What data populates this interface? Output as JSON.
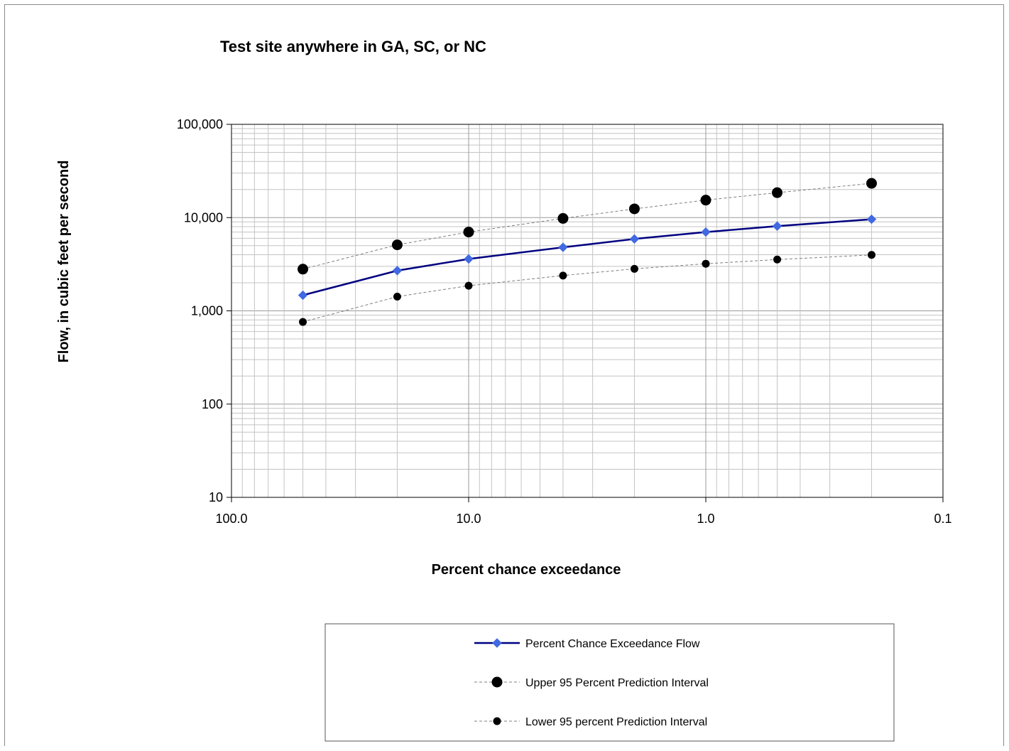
{
  "chart_data": {
    "type": "line",
    "title": "Test site anywhere in GA, SC, or NC",
    "xlabel": "Percent chance exceedance",
    "ylabel": "Flow, in cubic feet per second",
    "x_scale": "log",
    "x_reversed": true,
    "y_scale": "log",
    "xlim": [
      100,
      0.1
    ],
    "ylim": [
      10,
      100000
    ],
    "grid": true,
    "legend_position": "bottom",
    "x_tick_labels": [
      "100.0",
      "10.0",
      "1.0",
      "0.1"
    ],
    "y_tick_labels": [
      "10",
      "100",
      "1,000",
      "10,000",
      "100,000"
    ],
    "x": [
      50,
      20,
      10,
      4,
      2,
      1,
      0.5,
      0.2
    ],
    "series": [
      {
        "name": "Percent Chance Exceedance Flow",
        "color": "#000080",
        "marker_color": "#4169E1",
        "marker": "diamond",
        "line_style": "solid",
        "values": [
          1470,
          2700,
          3600,
          4800,
          5900,
          7000,
          8100,
          9600
        ]
      },
      {
        "name": "Upper 95 Percent Prediction Interval",
        "color": "#7f7f7f",
        "marker_color": "#000000",
        "marker": "circle-large",
        "line_style": "dashed",
        "values": [
          2800,
          5100,
          7000,
          9800,
          12400,
          15400,
          18500,
          23300
        ]
      },
      {
        "name": "Lower 95 percent Prediction Interval",
        "color": "#7f7f7f",
        "marker_color": "#000000",
        "marker": "circle-small",
        "line_style": "dashed",
        "values": [
          760,
          1420,
          1860,
          2390,
          2820,
          3200,
          3550,
          3980
        ]
      }
    ]
  }
}
